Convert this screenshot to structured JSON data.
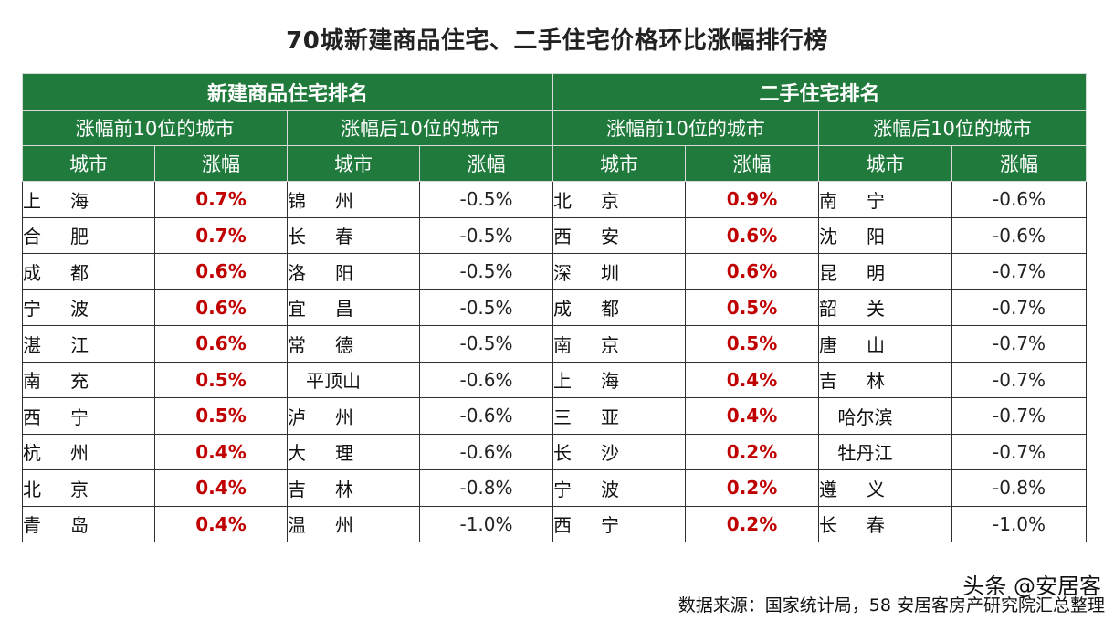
{
  "title": "70城新建商品住宅、二手住宅价格环比涨幅排行榜",
  "sections": [
    "新建商品住宅排名",
    "二手住宅排名"
  ],
  "groups": [
    "涨幅前10位的城市",
    "涨幅后10位的城市",
    "涨幅前10位的城市",
    "涨幅后10位的城市"
  ],
  "col_headers": [
    "城市",
    "涨幅",
    "城市",
    "涨幅",
    "城市",
    "涨幅",
    "城市",
    "涨幅"
  ],
  "colors": {
    "header_bg": "#1f7a3c",
    "up_value": "#c00000"
  },
  "rows": [
    [
      "上海",
      "0.7%",
      "锦州",
      "-0.5%",
      "北京",
      "0.9%",
      "南宁",
      "-0.6%"
    ],
    [
      "合肥",
      "0.7%",
      "长春",
      "-0.5%",
      "西安",
      "0.6%",
      "沈阳",
      "-0.6%"
    ],
    [
      "成都",
      "0.6%",
      "洛阳",
      "-0.5%",
      "深圳",
      "0.6%",
      "昆明",
      "-0.7%"
    ],
    [
      "宁波",
      "0.6%",
      "宜昌",
      "-0.5%",
      "成都",
      "0.5%",
      "韶关",
      "-0.7%"
    ],
    [
      "湛江",
      "0.6%",
      "常德",
      "-0.5%",
      "南京",
      "0.5%",
      "唐山",
      "-0.7%"
    ],
    [
      "南充",
      "0.5%",
      "平顶山",
      "-0.6%",
      "上海",
      "0.4%",
      "吉林",
      "-0.7%"
    ],
    [
      "西宁",
      "0.5%",
      "泸州",
      "-0.6%",
      "三亚",
      "0.4%",
      "哈尔滨",
      "-0.7%"
    ],
    [
      "杭州",
      "0.4%",
      "大理",
      "-0.6%",
      "长沙",
      "0.2%",
      "牡丹江",
      "-0.7%"
    ],
    [
      "北京",
      "0.4%",
      "吉林",
      "-0.8%",
      "宁波",
      "0.2%",
      "遵义",
      "-0.8%"
    ],
    [
      "青岛",
      "0.4%",
      "温州",
      "-1.0%",
      "西宁",
      "0.2%",
      "长春",
      "-1.0%"
    ]
  ],
  "source": "数据来源：国家统计局，58 安居客房产研究院汇总整理",
  "watermark": "头条 @安居客"
}
